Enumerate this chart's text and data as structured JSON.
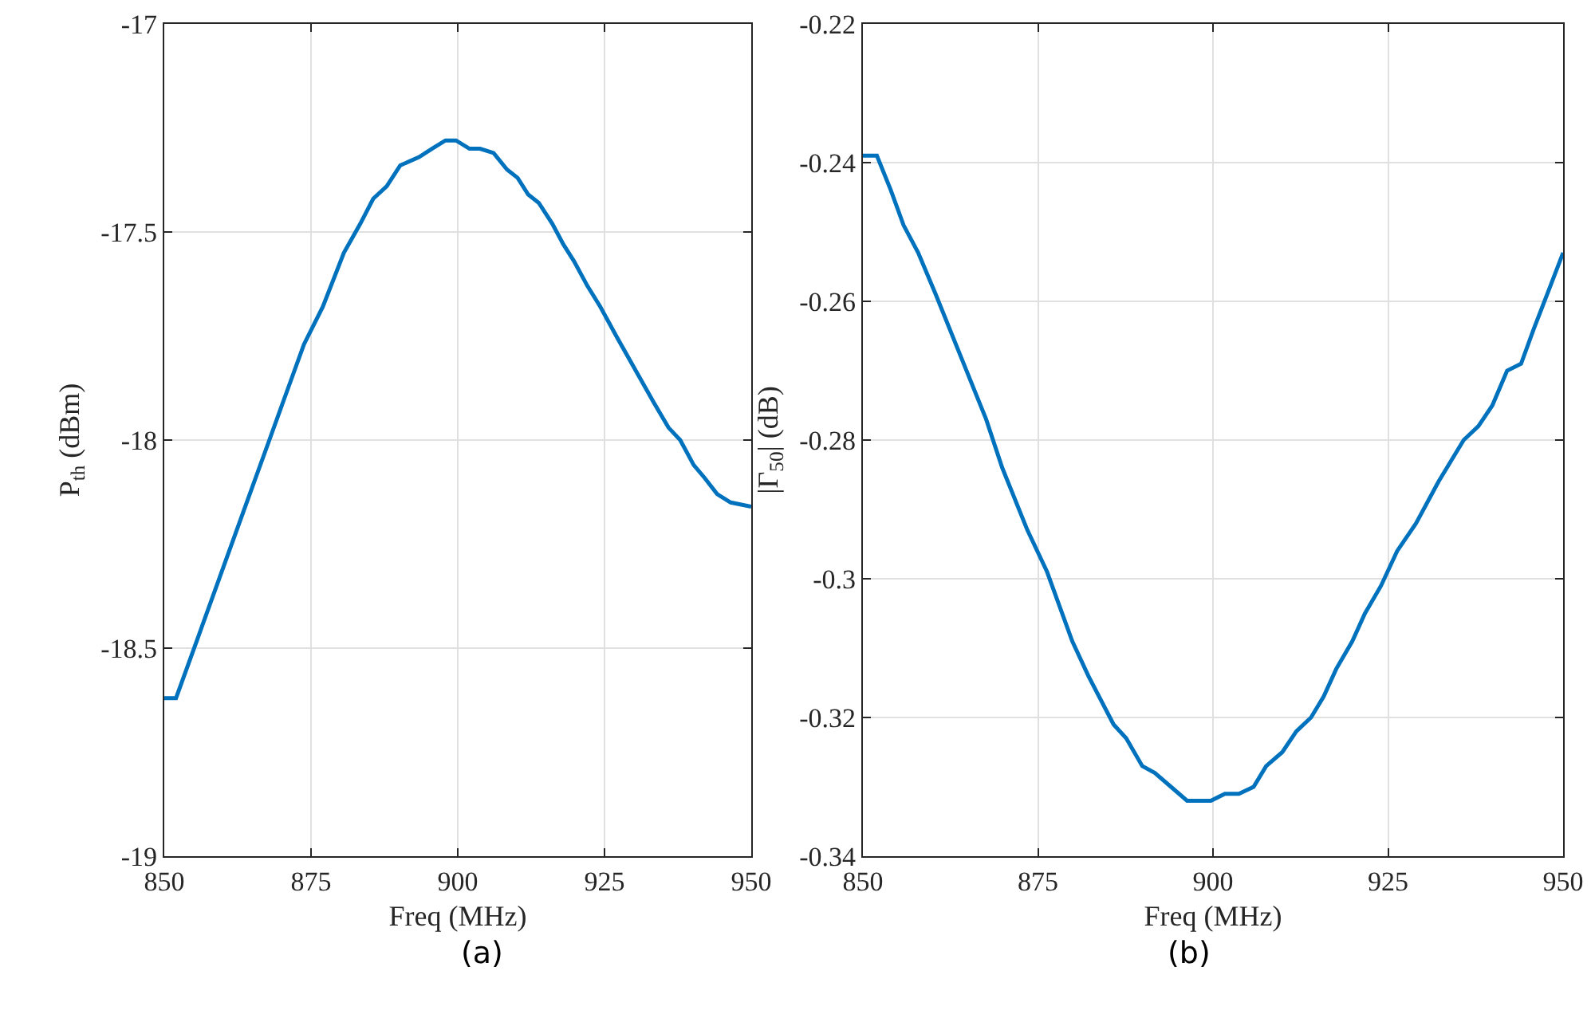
{
  "chart_data": [
    {
      "type": "line",
      "xlabel": "Freq (MHz)",
      "ylabel": "P$_{th}$ (dBm)",
      "annotations": [
        "(a)"
      ],
      "xlim": [
        850,
        950
      ],
      "xticks": [
        850,
        875,
        900,
        925,
        950
      ],
      "ylim": [
        -19,
        -17
      ],
      "yticks": [
        -19,
        -18.5,
        -18,
        -17.5,
        -17
      ],
      "grid": true,
      "series": [
        {
          "color": "#0072bd",
          "x": [
            850,
            852,
            855.6,
            857.9,
            860.2,
            864.3,
            867.9,
            870.2,
            873.8,
            877,
            880.6,
            883.4,
            885.6,
            887.9,
            890.2,
            893.4,
            895.6,
            897.9,
            899.7,
            902,
            903.8,
            906.1,
            908.4,
            910.2,
            912,
            913.8,
            916.1,
            918,
            919.8,
            922.1,
            924.3,
            927,
            930.6,
            933.4,
            935.9,
            937.9,
            940.2,
            942,
            944.2,
            946.5,
            950
          ],
          "values": [
            -18.62,
            -18.62,
            -18.48,
            -18.39,
            -18.3,
            -18.14,
            -18.0,
            -17.91,
            -17.77,
            -17.68,
            -17.55,
            -17.48,
            -17.42,
            -17.39,
            -17.34,
            -17.32,
            -17.3,
            -17.28,
            -17.28,
            -17.3,
            -17.3,
            -17.31,
            -17.35,
            -17.37,
            -17.41,
            -17.43,
            -17.48,
            -17.53,
            -17.57,
            -17.63,
            -17.68,
            -17.75,
            -17.84,
            -17.91,
            -17.97,
            -18.0,
            -18.06,
            -18.09,
            -18.13,
            -18.15,
            -18.16
          ]
        }
      ]
    },
    {
      "type": "line",
      "xlabel": "Freq (MHz)",
      "ylabel": "|Γ$_{50}$| (dB)",
      "annotations": [
        "(b)"
      ],
      "xlim": [
        850,
        950
      ],
      "xticks": [
        850,
        875,
        900,
        925,
        950
      ],
      "ylim": [
        -0.34,
        -0.22
      ],
      "yticks": [
        -0.34,
        -0.32,
        -0.3,
        -0.28,
        -0.26,
        -0.24,
        -0.22
      ],
      "grid": true,
      "series": [
        {
          "color": "#0072bd",
          "x": [
            850,
            852,
            854,
            855.8,
            857.9,
            860.4,
            864,
            867.6,
            869.9,
            873.5,
            876.3,
            879.9,
            882.2,
            885.8,
            887.6,
            889.9,
            891.7,
            894,
            896.3,
            898.1,
            899.7,
            901.7,
            903.7,
            905.8,
            907.6,
            909.9,
            911.9,
            914,
            915.8,
            917.6,
            919.9,
            921.7,
            924,
            926.3,
            929,
            932.2,
            935.8,
            937.9,
            939.9,
            942,
            944,
            945.8,
            948.1,
            950
          ],
          "values": [
            -0.239,
            -0.239,
            -0.244,
            -0.249,
            -0.253,
            -0.259,
            -0.268,
            -0.277,
            -0.284,
            -0.293,
            -0.299,
            -0.309,
            -0.314,
            -0.321,
            -0.323,
            -0.327,
            -0.328,
            -0.33,
            -0.332,
            -0.332,
            -0.332,
            -0.331,
            -0.331,
            -0.33,
            -0.327,
            -0.325,
            -0.322,
            -0.32,
            -0.317,
            -0.313,
            -0.309,
            -0.305,
            -0.301,
            -0.296,
            -0.292,
            -0.286,
            -0.28,
            -0.278,
            -0.275,
            -0.27,
            -0.269,
            -0.264,
            -0.258,
            -0.253
          ]
        }
      ]
    }
  ]
}
